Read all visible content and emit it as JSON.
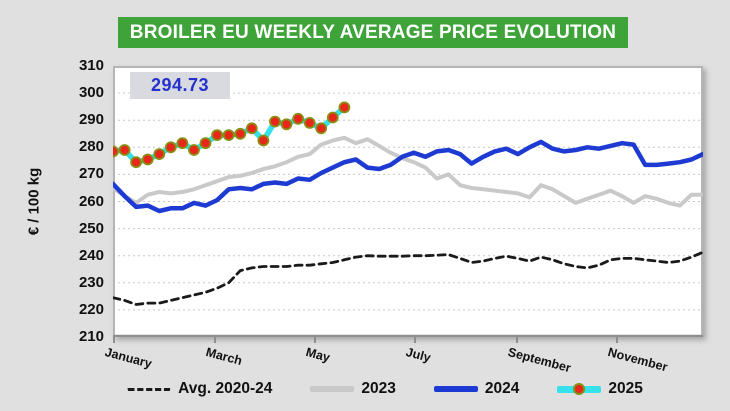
{
  "colors": {
    "page_bg": "#e0e0e0",
    "title_bg": "#3ea339",
    "title_text": "#ffffff",
    "annotation_bg": "#d9dae0",
    "annotation_text": "#2531cc",
    "grid": "#c9c9c9",
    "frame": "#b5b5b5",
    "axis_line": "#8f8f8f",
    "axis_text": "#111111"
  },
  "chart_data": {
    "type": "line",
    "title": "BROILER EU WEEKLY AVERAGE PRICE EVOLUTION",
    "ylabel": "€ / 100 kg",
    "ylim": [
      210,
      310
    ],
    "ytick_step": 10,
    "x_weeks": 52,
    "grid": "horizontal dashed",
    "legend_position": "bottom",
    "annotation": {
      "text": "294.73",
      "series": "2025"
    },
    "xticks": [
      {
        "label": "January",
        "week": 1
      },
      {
        "label": "March",
        "week": 9.7
      },
      {
        "label": "May",
        "week": 18.4
      },
      {
        "label": "July",
        "week": 27
      },
      {
        "label": "September",
        "week": 35.8
      },
      {
        "label": "November",
        "week": 44.5
      }
    ],
    "series": [
      {
        "name": "Avg. 2020-24",
        "color": "#1a1a1a",
        "width": 2.8,
        "dash": "7 5",
        "values": [
          224.5,
          223.5,
          222,
          222.5,
          222.5,
          223.5,
          224.5,
          225.5,
          226.5,
          228,
          230,
          234.5,
          235.5,
          236,
          236,
          236,
          236.5,
          236.5,
          237,
          237.5,
          238.5,
          239.5,
          240,
          239.8,
          239.8,
          239.8,
          240,
          240,
          240.2,
          240.4,
          239,
          237.5,
          238,
          239,
          239.8,
          239,
          238,
          239.5,
          238.5,
          237,
          236,
          235.5,
          236.5,
          238.5,
          239,
          239,
          238.5,
          238,
          237.5,
          238,
          239.5,
          241.3
        ]
      },
      {
        "name": "2023",
        "color": "#c9c9c9",
        "width": 4,
        "values": [
          265,
          262,
          259.5,
          262.5,
          263.5,
          263,
          263.5,
          264.5,
          266,
          267.5,
          269,
          269.5,
          270.5,
          272,
          273,
          274.5,
          276.5,
          277.5,
          281,
          282.5,
          283.5,
          281.5,
          283,
          280.5,
          278,
          276,
          274.5,
          272.5,
          268.5,
          270,
          266,
          265,
          264.5,
          264,
          263.5,
          263,
          261.5,
          266,
          264.5,
          262,
          259.5,
          261,
          262.5,
          264,
          262,
          259.5,
          262,
          261,
          259.5,
          258.5,
          262.5,
          262.5
        ]
      },
      {
        "name": "2024",
        "color": "#1d3ad2",
        "width": 4.5,
        "values": [
          266.5,
          262,
          258,
          258.5,
          256.5,
          257.5,
          257.5,
          259.5,
          258.5,
          260.5,
          264.5,
          265,
          264.5,
          266.5,
          267,
          266.5,
          268.5,
          268,
          270.5,
          272.5,
          274.5,
          275.5,
          272.5,
          272,
          273.5,
          276.5,
          278,
          276.5,
          278.5,
          279,
          277.5,
          274,
          276.5,
          278.5,
          279.5,
          277.5,
          280,
          282,
          279.5,
          278.5,
          279,
          280,
          279.5,
          280.5,
          281.5,
          281,
          273.5,
          273.5,
          274,
          274.5,
          275.5,
          277.5
        ]
      },
      {
        "name": "2025",
        "color": "#35e1ea",
        "width": 5.5,
        "marker": {
          "fill": "#e8261a",
          "stroke": "#8a8e12",
          "r": 5
        },
        "values": [
          278.5,
          279,
          274.5,
          275.5,
          277.5,
          280,
          281.5,
          279,
          281.5,
          284.5,
          284.5,
          285,
          287,
          282.5,
          289.5,
          288.5,
          290.5,
          289,
          287,
          291,
          294.73
        ]
      }
    ]
  }
}
